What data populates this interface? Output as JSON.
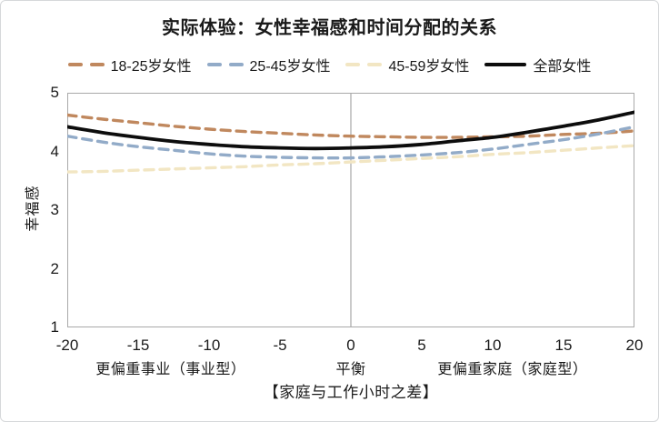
{
  "colors": {
    "background": "#FFFFFF",
    "figure_border": "#D6D8DA",
    "plot_border": "#A9A9A9",
    "reference_line": "#B3B3B3",
    "text": "#1A1A1A"
  },
  "chart_data": {
    "type": "line",
    "title": "实际体验：女性幸福感和时间分配的关系",
    "ylabel": "幸福感",
    "xlabel": "【家庭与工作小时之差】",
    "xlim": [
      -20,
      20
    ],
    "ylim": [
      1,
      5
    ],
    "grid": "none",
    "legend_position": "top",
    "reference_line_x": 0,
    "y_ticks": [
      "5",
      "4",
      "3",
      "2",
      "1"
    ],
    "x_ticks": [
      "-20",
      "-15",
      "-10",
      "-5",
      "0",
      "5",
      "10",
      "15",
      "20"
    ],
    "x_tick_values": [
      -20,
      -15,
      -10,
      -5,
      0,
      5,
      10,
      15,
      20
    ],
    "zone_labels": [
      {
        "label": "更偏重事业（事业型）",
        "x": -12.7
      },
      {
        "label": "平衡",
        "x": 0
      },
      {
        "label": "更偏重家庭（家庭型）",
        "x": 11.4
      }
    ],
    "x": [
      -20,
      -17.5,
      -15,
      -12.5,
      -10,
      -7.5,
      -5,
      -2.5,
      0,
      2.5,
      5,
      7.5,
      10,
      12.5,
      15,
      17.5,
      20
    ],
    "series": [
      {
        "name": "18-25岁女性",
        "line_style": "dashed",
        "color": "#C0885E",
        "values": [
          4.62,
          4.55,
          4.49,
          4.43,
          4.38,
          4.34,
          4.31,
          4.28,
          4.26,
          4.25,
          4.24,
          4.24,
          4.25,
          4.26,
          4.29,
          4.31,
          4.35
        ]
      },
      {
        "name": "25-45岁女性",
        "line_style": "dashed",
        "color": "#92ABC8",
        "values": [
          4.26,
          4.16,
          4.08,
          4.02,
          3.96,
          3.92,
          3.9,
          3.89,
          3.89,
          3.91,
          3.94,
          3.98,
          4.04,
          4.12,
          4.2,
          4.3,
          4.42
        ]
      },
      {
        "name": "45-59岁女性",
        "line_style": "dashed",
        "color": "#F2E6C3",
        "values": [
          3.65,
          3.66,
          3.68,
          3.7,
          3.72,
          3.74,
          3.77,
          3.79,
          3.82,
          3.85,
          3.88,
          3.91,
          3.95,
          3.98,
          4.02,
          4.06,
          4.1
        ]
      },
      {
        "name": "全部女性",
        "line_style": "solid",
        "color": "#0D0D0D",
        "values": [
          4.42,
          4.32,
          4.24,
          4.17,
          4.12,
          4.08,
          4.06,
          4.05,
          4.06,
          4.08,
          4.12,
          4.18,
          4.24,
          4.33,
          4.43,
          4.54,
          4.67
        ]
      }
    ]
  }
}
